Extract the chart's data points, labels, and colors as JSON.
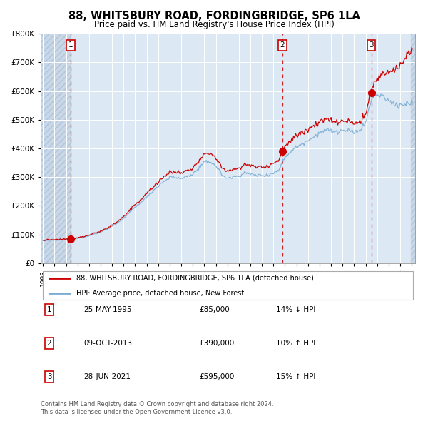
{
  "title": "88, WHITSBURY ROAD, FORDINGBRIDGE, SP6 1LA",
  "subtitle": "Price paid vs. HM Land Registry's House Price Index (HPI)",
  "legend_line1": "88, WHITSBURY ROAD, FORDINGBRIDGE, SP6 1LA (detached house)",
  "legend_line2": "HPI: Average price, detached house, New Forest",
  "sale_color": "#cc0000",
  "hpi_color": "#7aadd4",
  "background_plot": "#dce8f4",
  "background_hatch_color": "#c8d8e8",
  "grid_color": "#ffffff",
  "footnote1": "Contains HM Land Registry data © Crown copyright and database right 2024.",
  "footnote2": "This data is licensed under the Open Government Licence v3.0.",
  "ylim": [
    0,
    800000
  ],
  "yticks": [
    0,
    100000,
    200000,
    300000,
    400000,
    500000,
    600000,
    700000,
    800000
  ],
  "sale_times": [
    1995.396,
    2013.769,
    2021.493
  ],
  "sale_prices": [
    85000,
    390000,
    595000
  ],
  "table_dates": [
    "25-MAY-1995",
    "09-OCT-2013",
    "28-JUN-2021"
  ],
  "table_prices": [
    "£85,000",
    "£390,000",
    "£595,000"
  ],
  "table_pcts": [
    "14% ↓ HPI",
    "10% ↑ HPI",
    "15% ↑ HPI"
  ]
}
